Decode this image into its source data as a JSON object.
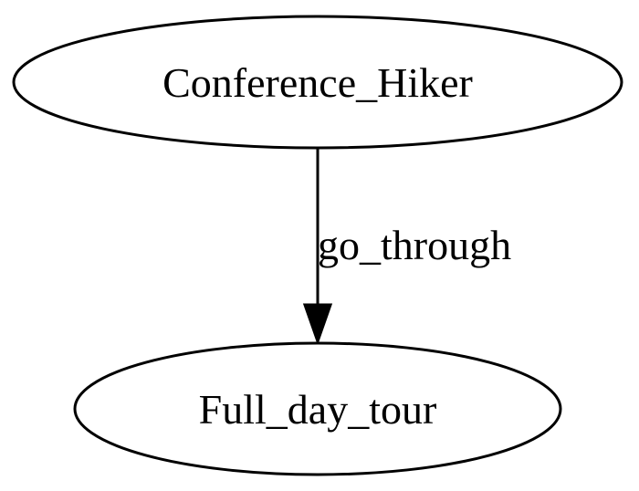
{
  "graph": {
    "nodes": [
      {
        "id": "n1",
        "label": "Conference_Hiker"
      },
      {
        "id": "n2",
        "label": "Full_day_tour"
      }
    ],
    "edges": [
      {
        "from": "n1",
        "to": "n2",
        "label": "go_through"
      }
    ],
    "colors": {
      "stroke": "#000000",
      "fill": "#ffffff",
      "text": "#000000"
    }
  }
}
